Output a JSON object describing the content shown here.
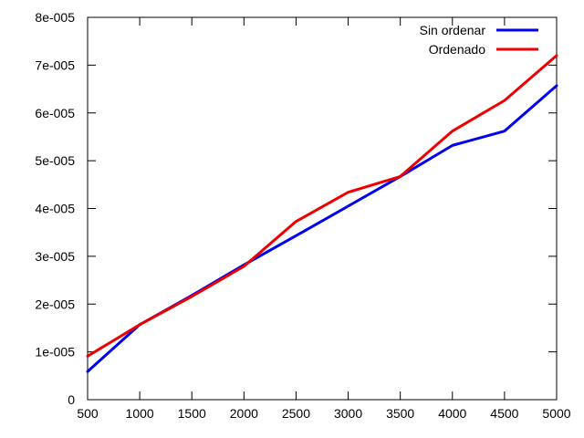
{
  "chart_data": {
    "type": "line",
    "x": [
      500,
      1000,
      1500,
      2000,
      2500,
      3000,
      3500,
      4000,
      4500,
      5000
    ],
    "xlim": [
      500,
      5000
    ],
    "ylim": [
      0,
      8e-05
    ],
    "xticks": [
      "500",
      "1000",
      "1500",
      "2000",
      "2500",
      "3000",
      "3500",
      "4000",
      "4500",
      "5000"
    ],
    "yticks": [
      "0",
      "1e-005",
      "2e-005",
      "3e-005",
      "4e-005",
      "5e-005",
      "6e-005",
      "7e-005",
      "8e-005"
    ],
    "grid": false,
    "legend_position": "top-right",
    "series": [
      {
        "name": "Sin ordenar",
        "color": "#0000ee",
        "values": [
          5.9e-06,
          1.57e-05,
          2.18e-05,
          2.82e-05,
          3.43e-05,
          4.05e-05,
          4.67e-05,
          5.32e-05,
          5.62e-05,
          6.57e-05
        ]
      },
      {
        "name": "Ordenado",
        "color": "#ee0000",
        "values": [
          9.1e-06,
          1.57e-05,
          2.16e-05,
          2.79e-05,
          3.73e-05,
          4.34e-05,
          4.67e-05,
          5.62e-05,
          6.26e-05,
          7.2e-05
        ]
      }
    ]
  }
}
